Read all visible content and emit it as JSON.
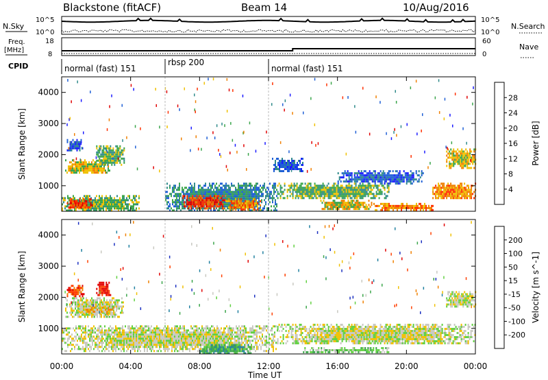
{
  "header": {
    "station": "Blackstone (fitACF)",
    "beam": "Beam 14",
    "date": "10/Aug/2016"
  },
  "top_panels": {
    "nsky_label": "N.Sky",
    "nsky_ticks": [
      "10^5",
      "10^0"
    ],
    "nsearch_label": "N.Search",
    "nsearch_ticks": [
      "10^5",
      "10^0"
    ],
    "freq_label": "Freq.",
    "freq_unit": "[MHz]",
    "freq_ticks": [
      "18",
      "8"
    ],
    "nave_label": "Nave",
    "nave_ticks": [
      "60",
      "0"
    ],
    "cpid_label": "CPID",
    "cpid_segments": [
      {
        "label": "normal (fast) 151",
        "start_hour": 0,
        "end_hour": 6
      },
      {
        "label": "rbsp 200",
        "start_hour": 6,
        "end_hour": 12
      },
      {
        "label": "normal (fast) 151",
        "start_hour": 12,
        "end_hour": 24
      }
    ]
  },
  "chart_data": [
    {
      "type": "heatmap",
      "name": "power",
      "ylabel": "Slant Range [km]",
      "ylim": [
        180,
        4500
      ],
      "yticks": [
        1000,
        2000,
        3000,
        4000
      ],
      "xlim": [
        0,
        24
      ],
      "colorbar_label": "Power [dB]",
      "colorbar_ticks": [
        "4",
        "8",
        "12",
        "16",
        "20",
        "24",
        "28"
      ],
      "colors": [
        "#1a1aff",
        "#1e5fd6",
        "#2f8a8a",
        "#3aa54a",
        "#f0c000",
        "#f08000",
        "#ff3000",
        "#e00000"
      ],
      "regions": [
        {
          "t0": 0.2,
          "t1": 2.8,
          "r0": 1400,
          "r1": 1850,
          "level": 4
        },
        {
          "t0": 2.0,
          "t1": 3.6,
          "r0": 1700,
          "r1": 2300,
          "level": 3
        },
        {
          "t0": 0.3,
          "t1": 1.2,
          "r0": 2150,
          "r1": 2500,
          "level": 1
        },
        {
          "t0": 0.0,
          "t1": 4.5,
          "r0": 200,
          "r1": 700,
          "level": 3
        },
        {
          "t0": 0.3,
          "t1": 1.8,
          "r0": 300,
          "r1": 600,
          "level": 6
        },
        {
          "t0": 6.0,
          "t1": 12.5,
          "r0": 200,
          "r1": 1100,
          "level": 2
        },
        {
          "t0": 7.0,
          "t1": 9.5,
          "r0": 300,
          "r1": 700,
          "level": 6
        },
        {
          "t0": 9.5,
          "t1": 11.5,
          "r0": 250,
          "r1": 600,
          "level": 5
        },
        {
          "t0": 12.5,
          "t1": 19.0,
          "r0": 600,
          "r1": 1100,
          "level": 3
        },
        {
          "t0": 15.0,
          "t1": 18.0,
          "r0": 250,
          "r1": 550,
          "level": 4
        },
        {
          "t0": 18.0,
          "t1": 21.5,
          "r0": 250,
          "r1": 450,
          "level": 5
        },
        {
          "t0": 21.5,
          "t1": 24.0,
          "r0": 600,
          "r1": 1100,
          "level": 5
        },
        {
          "t0": 22.3,
          "t1": 24.0,
          "r0": 1600,
          "r1": 2200,
          "level": 4
        },
        {
          "t0": 16.0,
          "t1": 21.0,
          "r0": 1100,
          "r1": 1500,
          "level": 1
        },
        {
          "t0": 12.2,
          "t1": 14.0,
          "r0": 1500,
          "r1": 1900,
          "level": 1
        }
      ]
    },
    {
      "type": "heatmap",
      "name": "velocity",
      "ylabel": "Slant Range [km]",
      "ylim": [
        180,
        4500
      ],
      "yticks": [
        1000,
        2000,
        3000,
        4000
      ],
      "xlim": [
        0,
        24
      ],
      "xlabel": "Time UT",
      "xticks": [
        "00:00",
        "04:00",
        "08:00",
        "12:00",
        "16:00",
        "20:00",
        "00:00"
      ],
      "colorbar_label": "Velocity [m s^-1]",
      "colorbar_ticks": [
        "200",
        "100",
        "50",
        "15",
        "-15",
        "-50",
        "-100",
        "-200"
      ],
      "colors": [
        "#1a2fc0",
        "#2080a0",
        "#3aa54a",
        "#60d040",
        "#c8c8c0",
        "#f0c000",
        "#f08000",
        "#ff4000",
        "#e00000"
      ],
      "regions": [
        {
          "t0": 0.0,
          "t1": 12.5,
          "r0": 300,
          "r1": 1100,
          "level": 4
        },
        {
          "t0": 12.5,
          "t1": 24.0,
          "r0": 500,
          "r1": 1150,
          "level": 4
        },
        {
          "t0": 0.2,
          "t1": 3.6,
          "r0": 1350,
          "r1": 2000,
          "level": 4
        },
        {
          "t0": 0.3,
          "t1": 1.3,
          "r0": 2050,
          "r1": 2400,
          "level": 7
        },
        {
          "t0": 2.0,
          "t1": 2.8,
          "r0": 2050,
          "r1": 2500,
          "level": 8
        },
        {
          "t0": 8.0,
          "t1": 11.0,
          "r0": 200,
          "r1": 500,
          "level": 2
        },
        {
          "t0": 22.3,
          "t1": 24.0,
          "r0": 1700,
          "r1": 2200,
          "level": 4
        },
        {
          "t0": 1.0,
          "t1": 3.0,
          "r0": 1500,
          "r1": 1700,
          "level": 5
        },
        {
          "t0": 14.0,
          "t1": 19.0,
          "r0": 250,
          "r1": 400,
          "level": 3
        }
      ]
    }
  ]
}
